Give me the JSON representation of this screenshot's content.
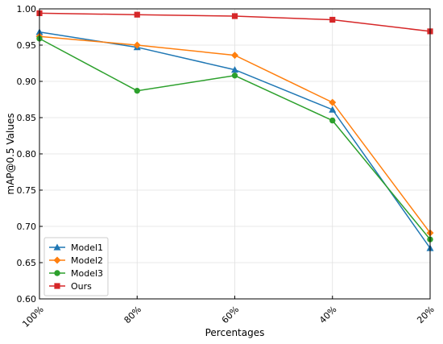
{
  "chart_data": {
    "type": "line",
    "title": "",
    "xlabel": "Percentages",
    "ylabel": "mAP@0.5 Values",
    "categories": [
      "100%",
      "80%",
      "60%",
      "40%",
      "20%"
    ],
    "ylim": [
      0.6,
      1.0
    ],
    "yticks": [
      "0.60",
      "0.65",
      "0.70",
      "0.75",
      "0.80",
      "0.85",
      "0.90",
      "0.95",
      "1.00"
    ],
    "grid": true,
    "legend_position": "bottom-left",
    "series": [
      {
        "name": "Model1",
        "color": "#1f77b4",
        "marker": "triangle",
        "values": [
          0.968,
          0.947,
          0.916,
          0.861,
          0.67
        ]
      },
      {
        "name": "Model2",
        "color": "#ff7f0e",
        "marker": "diamond",
        "values": [
          0.962,
          0.95,
          0.936,
          0.871,
          0.691
        ]
      },
      {
        "name": "Model3",
        "color": "#2ca02c",
        "marker": "circle",
        "values": [
          0.959,
          0.887,
          0.908,
          0.846,
          0.682
        ]
      },
      {
        "name": "Ours",
        "color": "#d62728",
        "marker": "square",
        "values": [
          0.994,
          0.992,
          0.99,
          0.985,
          0.969
        ]
      }
    ]
  }
}
